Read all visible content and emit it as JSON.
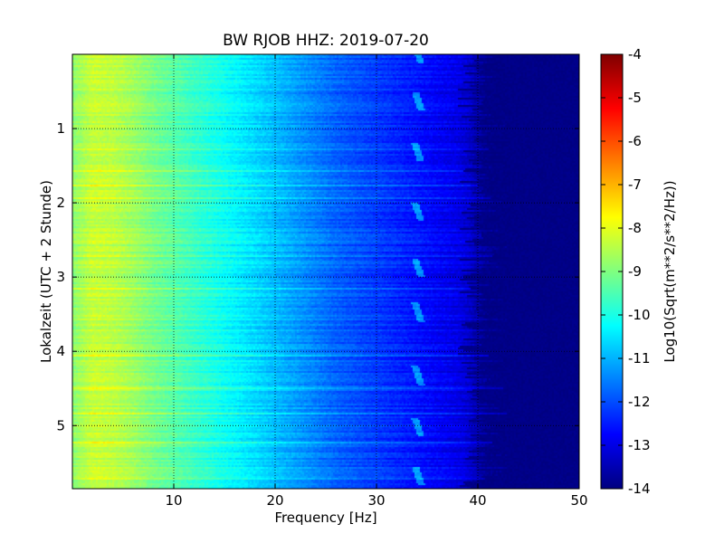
{
  "chart_data": {
    "type": "heatmap",
    "title": "BW RJOB HHZ: 2019-07-20",
    "xlabel": "Frequency [Hz]",
    "ylabel": "Lokalzeit (UTC + 2 Stunde)",
    "xlim": [
      0,
      50
    ],
    "ylim": [
      5.85,
      0
    ],
    "xticks": [
      "10",
      "20",
      "30",
      "40",
      "50"
    ],
    "yticks": [
      "1",
      "2",
      "3",
      "4",
      "5"
    ],
    "xtick_values": [
      10,
      20,
      30,
      40,
      50
    ],
    "ytick_values": [
      1,
      2,
      3,
      4,
      5
    ],
    "grid": true,
    "colormap": "jet",
    "colorbar": {
      "label": "Log10(Sqrt(m**2/s**2/Hz))",
      "range": [
        -14,
        -4
      ],
      "ticks": [
        "-4",
        "-5",
        "-6",
        "-7",
        "-8",
        "-9",
        "-10",
        "-11",
        "-12",
        "-13",
        "-14"
      ],
      "tick_values": [
        -4,
        -5,
        -6,
        -7,
        -8,
        -9,
        -10,
        -11,
        -12,
        -13,
        -14
      ]
    },
    "spectral_profile": {
      "frequency_hz": [
        0,
        2,
        4,
        6,
        8,
        10,
        12,
        14,
        16,
        18,
        20,
        22,
        24,
        26,
        28,
        30,
        32,
        34,
        36,
        38,
        39,
        40,
        41,
        42,
        44,
        46,
        48,
        50
      ],
      "level": [
        -8.9,
        -8.3,
        -8.4,
        -8.7,
        -9.1,
        -9.4,
        -9.7,
        -10.0,
        -10.3,
        -10.6,
        -10.9,
        -11.2,
        -11.5,
        -11.8,
        -12.0,
        -12.2,
        -12.4,
        -12.6,
        -12.8,
        -13.0,
        -13.2,
        -13.6,
        -13.9,
        -14.0,
        -14.0,
        -14.0,
        -14.0,
        -14.0
      ]
    },
    "cutoff_frequency_hz": 40,
    "cutoff_range_hz": [
      38,
      43
    ],
    "line_feature_frequency_hz": 34.3,
    "line_feature_times": [
      0.08,
      0.7,
      1.4,
      2.2,
      2.95,
      3.55,
      4.4,
      5.1,
      5.75
    ]
  }
}
